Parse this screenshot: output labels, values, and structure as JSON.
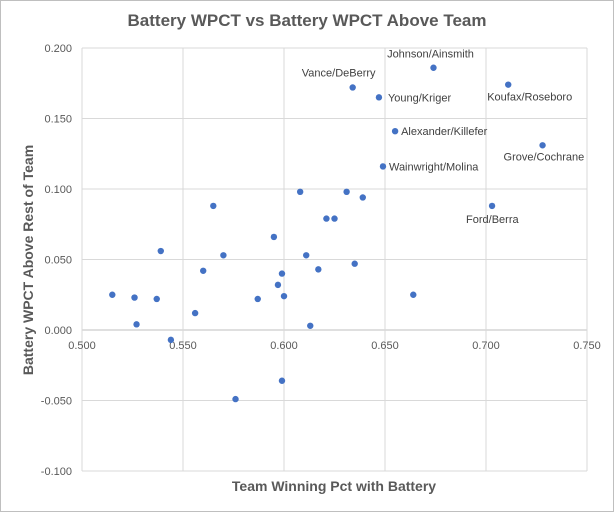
{
  "chart_data": {
    "type": "scatter",
    "title": "Battery WPCT vs Battery WPCT Above Team",
    "xlabel": "Team Winning Pct with Battery",
    "ylabel": "Battery WPCT Above Rest of Team",
    "xlim": [
      0.5,
      0.75
    ],
    "ylim": [
      -0.1,
      0.2
    ],
    "x_ticks": [
      "0.500",
      "0.550",
      "0.600",
      "0.650",
      "0.700",
      "0.750"
    ],
    "y_ticks": [
      "-0.100",
      "-0.050",
      "0.000",
      "0.050",
      "0.100",
      "0.150",
      "0.200"
    ],
    "grid": "vertical and horizontal major gridlines",
    "marker_color": "#4472c4",
    "points": [
      {
        "x": 0.674,
        "y": 0.186,
        "label": "Johnson/Ainsmith"
      },
      {
        "x": 0.634,
        "y": 0.172,
        "label": "Vance/DeBerry"
      },
      {
        "x": 0.711,
        "y": 0.174,
        "label": "Koufax/Roseboro"
      },
      {
        "x": 0.647,
        "y": 0.165,
        "label": "Young/Kriger"
      },
      {
        "x": 0.655,
        "y": 0.141,
        "label": "Alexander/Killefer"
      },
      {
        "x": 0.728,
        "y": 0.131,
        "label": "Grove/Cochrane"
      },
      {
        "x": 0.649,
        "y": 0.116,
        "label": "Wainwright/Molina"
      },
      {
        "x": 0.703,
        "y": 0.088,
        "label": "Ford/Berra"
      },
      {
        "x": 0.608,
        "y": 0.098
      },
      {
        "x": 0.631,
        "y": 0.098
      },
      {
        "x": 0.639,
        "y": 0.094
      },
      {
        "x": 0.565,
        "y": 0.088
      },
      {
        "x": 0.621,
        "y": 0.079
      },
      {
        "x": 0.625,
        "y": 0.079
      },
      {
        "x": 0.595,
        "y": 0.066
      },
      {
        "x": 0.539,
        "y": 0.056
      },
      {
        "x": 0.57,
        "y": 0.053
      },
      {
        "x": 0.611,
        "y": 0.053
      },
      {
        "x": 0.635,
        "y": 0.047
      },
      {
        "x": 0.617,
        "y": 0.043
      },
      {
        "x": 0.56,
        "y": 0.042
      },
      {
        "x": 0.599,
        "y": 0.04
      },
      {
        "x": 0.597,
        "y": 0.032
      },
      {
        "x": 0.515,
        "y": 0.025
      },
      {
        "x": 0.664,
        "y": 0.025
      },
      {
        "x": 0.6,
        "y": 0.024
      },
      {
        "x": 0.526,
        "y": 0.023
      },
      {
        "x": 0.537,
        "y": 0.022
      },
      {
        "x": 0.587,
        "y": 0.022
      },
      {
        "x": 0.556,
        "y": 0.012
      },
      {
        "x": 0.527,
        "y": 0.004
      },
      {
        "x": 0.613,
        "y": 0.003
      },
      {
        "x": 0.544,
        "y": -0.007
      },
      {
        "x": 0.599,
        "y": -0.036
      },
      {
        "x": 0.576,
        "y": -0.049
      }
    ]
  }
}
